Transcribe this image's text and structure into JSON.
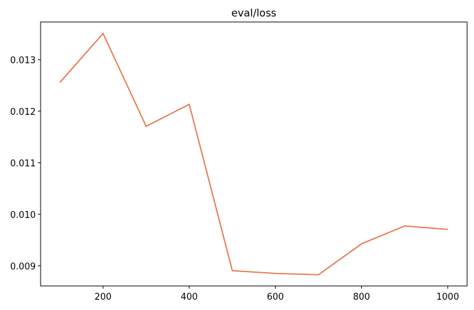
{
  "chart_data": {
    "type": "line",
    "title": "eval/loss",
    "x": [
      100,
      200,
      300,
      400,
      500,
      600,
      700,
      800,
      900,
      1000
    ],
    "series": [
      {
        "name": "eval/loss",
        "color": "#e8774c",
        "values": [
          0.01256,
          0.013507,
          0.011707,
          0.012133,
          0.008907,
          0.008853,
          0.008827,
          0.009427,
          0.009773,
          0.009707
        ]
      }
    ],
    "xlim": [
      55,
      1045
    ],
    "xticks": [
      200,
      400,
      600,
      800,
      1000
    ],
    "ylim": [
      0.00861,
      0.01373
    ],
    "yticks": [
      0.009,
      {
        "value": 0.01,
        "label": "0.010"
      },
      0.011,
      0.012,
      0.013
    ],
    "grid": false
  }
}
